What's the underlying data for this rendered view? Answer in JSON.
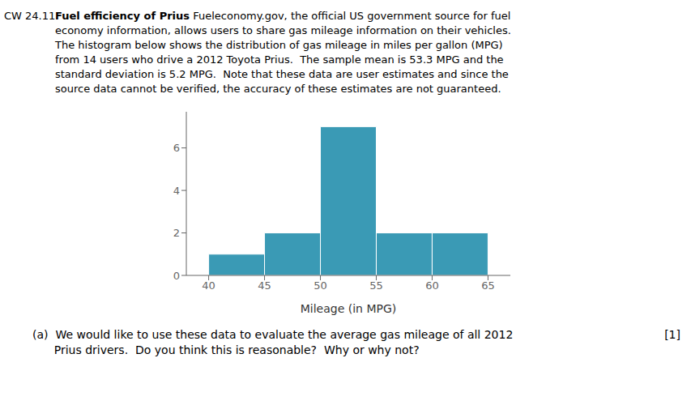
{
  "chart_data": {
    "type": "histogram",
    "title": "Fuel efficiency of Prius",
    "subtitle": [
      " Fueleconomy.gov, the official US government source for fuel",
      "economy information, allows users to share gas mileage information on their vehicles.",
      "The histogram below shows the distribution of gas mileage in miles per gallon (MPG)",
      "from 14 users who drive a 2012 Toyota Prius.  The sample mean is 53.3 MPG and the",
      "standard deviation is 5.2 MPG.  Note that these data are user estimates and since the",
      "source data cannot be verified, the accuracy of these estimates are not guaranteed."
    ],
    "annotations": [
      "CW 24.11.",
      "(a)  We would like to use these data to evaluate the average gas mileage of all 2012",
      "      Prius drivers.  Do you think this is reasonable?  Why or why not?",
      "[1]"
    ],
    "bins": [
      40,
      45,
      50,
      55,
      60,
      65
    ],
    "values": [
      1,
      2,
      7,
      2,
      2
    ],
    "color": "#3a9ab5",
    "xlabel": "Mileage (in MPG)",
    "xlim": [
      38,
      67
    ],
    "ylim": [
      0,
      7.7
    ],
    "xticks": [
      40,
      45,
      50,
      55,
      60,
      65
    ],
    "yticks": [
      0,
      2,
      4,
      6
    ],
    "grid": false
  }
}
